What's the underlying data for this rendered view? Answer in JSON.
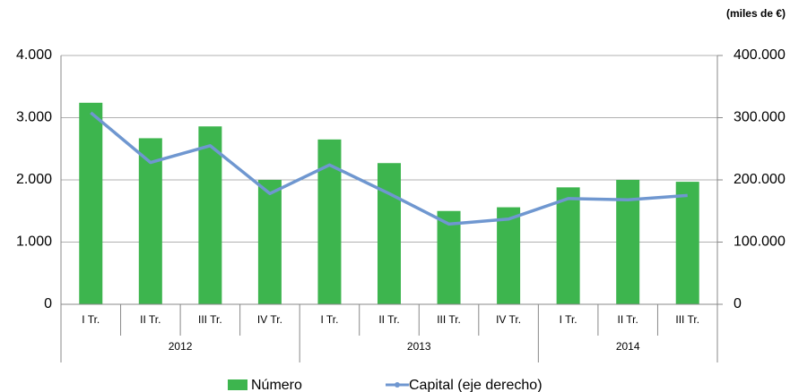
{
  "chart_data": {
    "type": "bar_line",
    "unit_label": "(miles de €)",
    "groups": [
      {
        "name": "2012",
        "categories": [
          "I Tr.",
          "II Tr.",
          "III Tr.",
          "IV Tr."
        ]
      },
      {
        "name": "2013",
        "categories": [
          "I Tr.",
          "II Tr.",
          "III Tr.",
          "IV Tr."
        ]
      },
      {
        "name": "2014",
        "categories": [
          "I Tr.",
          "II Tr.",
          "III Tr."
        ]
      }
    ],
    "series": [
      {
        "name": "Número",
        "type": "bar",
        "color": "#3db54e",
        "values": [
          3240,
          2670,
          2860,
          2000,
          2650,
          2270,
          1500,
          1560,
          1880,
          2000,
          1970
        ]
      },
      {
        "name": "Capital (eje derecho)",
        "type": "line",
        "axis": "y2",
        "color": "#6f97d0",
        "values": [
          308000,
          228000,
          255000,
          178000,
          224000,
          178000,
          129000,
          137000,
          170000,
          168000,
          175000
        ]
      }
    ],
    "ylim": [
      0,
      4000
    ],
    "yticks": [
      0,
      {
        "value": 1000,
        "label": "1.000"
      },
      {
        "value": 2000,
        "label": "2.000"
      },
      {
        "value": 3000,
        "label": "3.000"
      },
      {
        "value": 4000,
        "label": "4.000"
      }
    ],
    "y2lim": [
      0,
      400000
    ],
    "y2ticks": [
      0,
      {
        "value": 100000,
        "label": "100.000"
      },
      {
        "value": 200000,
        "label": "200.000"
      },
      {
        "value": 300000,
        "label": "300.000"
      },
      {
        "value": 400000,
        "label": "400.000"
      }
    ],
    "grid": true
  }
}
